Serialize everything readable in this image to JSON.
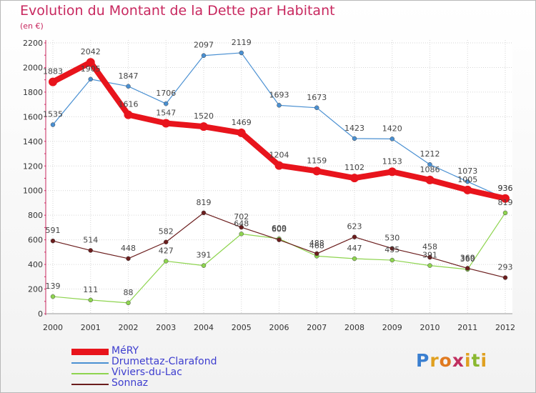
{
  "header": {
    "title": "Evolution du Montant de la Dette par Habitant",
    "subtitle": "(en €)"
  },
  "logo": {
    "letters": [
      "P",
      "r",
      "o",
      "x",
      "i",
      "t",
      "i"
    ],
    "colors": [
      "#3a7fd0",
      "#e0a020",
      "#e07a20",
      "#c03060",
      "#e0a020",
      "#8ab830",
      "#e0a020"
    ]
  },
  "chart_data": {
    "type": "line",
    "x": [
      2000,
      2001,
      2002,
      2003,
      2004,
      2005,
      2006,
      2007,
      2008,
      2009,
      2010,
      2011,
      2012
    ],
    "ylim": [
      0,
      2200
    ],
    "yticks": [
      0,
      200,
      400,
      600,
      800,
      1000,
      1200,
      1400,
      1600,
      1800,
      2000,
      2200
    ],
    "grid": true,
    "legend_position": "bottom-left",
    "series": [
      {
        "name": "MéRY",
        "color": "#e8141c",
        "emphasis": true,
        "values": [
          1883,
          2042,
          1616,
          1547,
          1520,
          1469,
          1204,
          1159,
          1102,
          1153,
          1086,
          1005,
          936
        ]
      },
      {
        "name": "Drumettaz-Clarafond",
        "color": "#4a90d2",
        "emphasis": false,
        "values": [
          1535,
          1905,
          1847,
          1706,
          2097,
          2119,
          1693,
          1673,
          1423,
          1420,
          1212,
          1073,
          936
        ]
      },
      {
        "name": "Viviers-du-Lac",
        "color": "#8ed44f",
        "emphasis": false,
        "values": [
          139,
          111,
          88,
          427,
          391,
          648,
          609,
          468,
          447,
          435,
          391,
          360,
          819
        ]
      },
      {
        "name": "Sonnaz",
        "color": "#6b1d1d",
        "emphasis": false,
        "values": [
          591,
          514,
          448,
          582,
          819,
          702,
          600,
          488,
          623,
          530,
          458,
          369,
          293
        ]
      }
    ]
  }
}
